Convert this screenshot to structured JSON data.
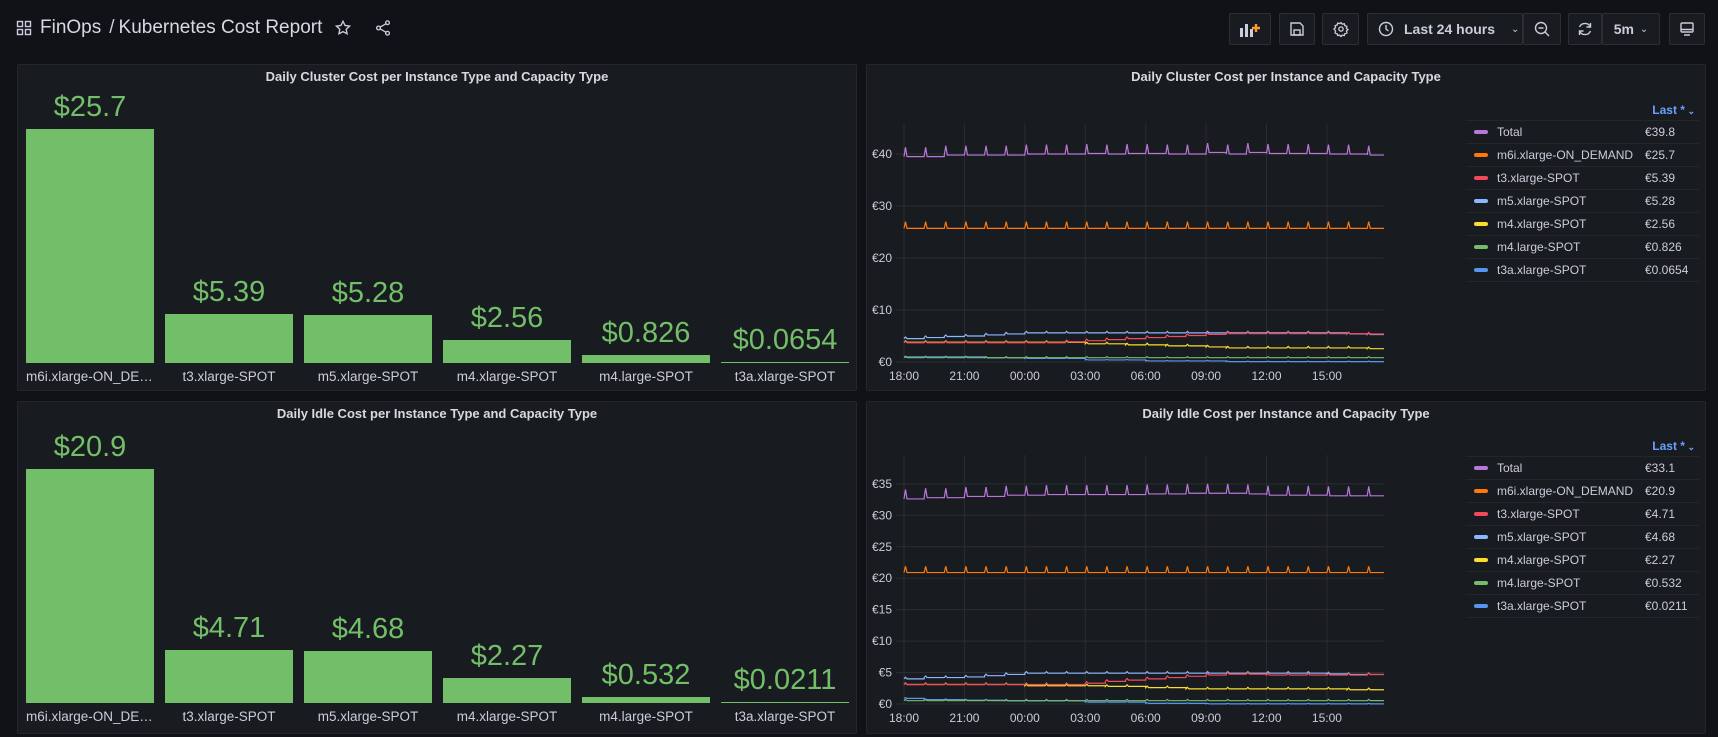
{
  "header": {
    "folder": "FinOps",
    "separator": "/",
    "title": "Kubernetes Cost Report",
    "time_range": "Last 24 hours",
    "refresh_interval": "5m"
  },
  "icons": {
    "apps": "grid-icon",
    "star": "star-icon",
    "share": "share-icon",
    "add_panel": "add-panel-icon",
    "save": "save-icon",
    "settings": "gear-icon",
    "clock": "clock-icon",
    "zoom_out": "zoom-out-icon",
    "refresh": "refresh-icon",
    "tv": "monitor-icon"
  },
  "colors": {
    "bar": "#73bf69",
    "Total": "#b877d9",
    "m6i.xlarge-ON_DEMAND": "#ff780a",
    "t3.xlarge-SPOT": "#f2495c",
    "m5.xlarge-SPOT": "#8ab8ff",
    "m4.xlarge-SPOT": "#fade2a",
    "m4.large-SPOT": "#73bf69",
    "t3a.xlarge-SPOT": "#5794f2"
  },
  "chart_data": [
    {
      "type": "bar",
      "title": "Daily Cluster Cost per Instance Type and Capacity Type",
      "categories": [
        "m6i.xlarge-ON_DEMAND",
        "t3.xlarge-SPOT",
        "m5.xlarge-SPOT",
        "m4.xlarge-SPOT",
        "m4.large-SPOT",
        "t3a.xlarge-SPOT"
      ],
      "values": [
        25.7,
        5.39,
        5.28,
        2.56,
        0.826,
        0.0654
      ],
      "labels": [
        "$25.7",
        "$5.39",
        "$5.28",
        "$2.56",
        "$0.826",
        "$0.0654"
      ]
    },
    {
      "type": "line",
      "title": "Daily Cluster Cost per Instance and Capacity Type",
      "ylim": [
        0,
        44
      ],
      "yticks": [
        0,
        10,
        20,
        30,
        40
      ],
      "ytick_labels": [
        "€0",
        "€10",
        "€20",
        "€30",
        "€40"
      ],
      "xtick_hours": [
        0,
        3,
        6,
        9,
        12,
        15,
        18,
        21
      ],
      "xtick_labels": [
        "18:00",
        "21:00",
        "00:00",
        "03:00",
        "06:00",
        "09:00",
        "12:00",
        "15:00"
      ],
      "x_start": "18:00",
      "x_end_hours": 23.83,
      "legend_header": "Last *",
      "legend_placement": "right",
      "series": [
        {
          "name": "Total",
          "last": "€39.8",
          "spike": 1.8,
          "values": [
            39.5,
            39.5,
            39.8,
            39.8,
            39.8,
            39.8,
            40,
            40,
            40,
            40.1,
            40,
            40.1,
            40.1,
            40,
            40,
            40.3,
            40,
            40.3,
            40.1,
            40.1,
            40.1,
            40,
            40,
            39.8
          ]
        },
        {
          "name": "m6i.xlarge-ON_DEMAND",
          "last": "€25.7",
          "spike": 1.3,
          "values": [
            25.7,
            25.7,
            25.7,
            25.7,
            25.7,
            25.7,
            25.7,
            25.7,
            25.7,
            25.7,
            25.7,
            25.7,
            25.7,
            25.7,
            25.7,
            25.7,
            25.7,
            25.7,
            25.7,
            25.7,
            25.7,
            25.7,
            25.7,
            25.7
          ]
        },
        {
          "name": "t3.xlarge-SPOT",
          "last": "€5.39",
          "spike": 0.3,
          "values": [
            3.7,
            3.7,
            3.7,
            3.7,
            3.7,
            3.7,
            3.7,
            3.7,
            3.9,
            4.1,
            4.3,
            4.5,
            4.7,
            4.9,
            5.1,
            5.3,
            5.45,
            5.45,
            5.45,
            5.45,
            5.45,
            5.45,
            5.45,
            5.39
          ]
        },
        {
          "name": "m5.xlarge-SPOT",
          "last": "€5.28",
          "spike": 0.3,
          "values": [
            4.5,
            4.7,
            4.9,
            5.0,
            5.2,
            5.4,
            5.6,
            5.6,
            5.6,
            5.6,
            5.6,
            5.6,
            5.6,
            5.6,
            5.6,
            5.6,
            5.6,
            5.6,
            5.6,
            5.6,
            5.6,
            5.6,
            5.4,
            5.28
          ]
        },
        {
          "name": "m4.xlarge-SPOT",
          "last": "€2.56",
          "spike": 0.3,
          "values": [
            3.8,
            3.8,
            3.8,
            3.8,
            3.8,
            3.8,
            3.8,
            3.8,
            3.8,
            3.5,
            3.5,
            3.3,
            3.3,
            3.1,
            3.1,
            2.9,
            2.7,
            2.7,
            2.7,
            2.7,
            2.7,
            2.7,
            2.7,
            2.56
          ]
        },
        {
          "name": "m4.large-SPOT",
          "last": "€0.826",
          "spike": 0.2,
          "values": [
            0.83,
            0.83,
            0.83,
            0.83,
            0.83,
            0.83,
            0.83,
            0.83,
            0.83,
            0.83,
            0.83,
            0.83,
            0.83,
            0.83,
            0.83,
            0.83,
            0.83,
            0.83,
            0.83,
            0.83,
            0.83,
            0.83,
            0.83,
            0.826
          ]
        },
        {
          "name": "t3a.xlarge-SPOT",
          "last": "€0.0654",
          "spike": 0.1,
          "values": [
            1.0,
            1.0,
            1.0,
            1.0,
            0.8,
            0.8,
            0.7,
            0.7,
            0.7,
            0.4,
            0.4,
            0.4,
            0.2,
            0.2,
            0.2,
            0.2,
            0.0654,
            0.0654,
            0.0654,
            0.0654,
            0.0654,
            0.0654,
            0.0654,
            0.0654
          ]
        }
      ]
    },
    {
      "type": "bar",
      "title": "Daily Idle Cost per Instance Type and Capacity Type",
      "categories": [
        "m6i.xlarge-ON_DEMAND",
        "t3.xlarge-SPOT",
        "m5.xlarge-SPOT",
        "m4.xlarge-SPOT",
        "m4.large-SPOT",
        "t3a.xlarge-SPOT"
      ],
      "values": [
        20.9,
        4.71,
        4.68,
        2.27,
        0.532,
        0.0211
      ],
      "labels": [
        "$20.9",
        "$4.71",
        "$4.68",
        "$2.27",
        "$0.532",
        "$0.0211"
      ]
    },
    {
      "type": "line",
      "title": "Daily Idle Cost per Instance and Capacity Type",
      "ylim": [
        0,
        38
      ],
      "yticks": [
        0,
        5,
        10,
        15,
        20,
        25,
        30,
        35
      ],
      "ytick_labels": [
        "€0",
        "€5",
        "€10",
        "€15",
        "€20",
        "€25",
        "€30",
        "€35"
      ],
      "xtick_hours": [
        0,
        3,
        6,
        9,
        12,
        15,
        18,
        21
      ],
      "xtick_labels": [
        "18:00",
        "21:00",
        "00:00",
        "03:00",
        "06:00",
        "09:00",
        "12:00",
        "15:00"
      ],
      "x_start": "18:00",
      "x_end_hours": 23.83,
      "legend_header": "Last *",
      "legend_placement": "right",
      "series": [
        {
          "name": "Total",
          "last": "€33.1",
          "spike": 1.5,
          "values": [
            32.6,
            32.8,
            32.8,
            33,
            33,
            33.2,
            33.2,
            33.3,
            33.3,
            33.3,
            33.3,
            33.3,
            33.4,
            33.4,
            33.5,
            33.5,
            33.5,
            33.4,
            33.2,
            33.2,
            33.2,
            33.1,
            33.1,
            33.1
          ]
        },
        {
          "name": "m6i.xlarge-ON_DEMAND",
          "last": "€20.9",
          "spike": 1.0,
          "values": [
            20.9,
            20.9,
            20.9,
            20.9,
            20.9,
            20.9,
            20.9,
            20.9,
            20.9,
            20.9,
            20.9,
            20.9,
            20.9,
            20.9,
            20.9,
            20.9,
            20.9,
            20.9,
            20.9,
            20.9,
            20.9,
            20.9,
            20.9,
            20.9
          ]
        },
        {
          "name": "t3.xlarge-SPOT",
          "last": "€4.71",
          "spike": 0.25,
          "values": [
            3.1,
            3.1,
            3.1,
            3.1,
            3.1,
            3.1,
            3.1,
            3.1,
            3.1,
            3.3,
            3.6,
            3.8,
            4.0,
            4.2,
            4.4,
            4.6,
            4.75,
            4.75,
            4.6,
            4.6,
            4.6,
            4.6,
            4.6,
            4.71
          ]
        },
        {
          "name": "m5.xlarge-SPOT",
          "last": "€4.68",
          "spike": 0.25,
          "values": [
            4.0,
            4.2,
            4.2,
            4.3,
            4.5,
            4.7,
            4.9,
            4.9,
            4.9,
            4.9,
            4.9,
            4.9,
            4.9,
            4.9,
            4.9,
            4.9,
            4.9,
            4.9,
            4.9,
            4.9,
            4.9,
            4.8,
            4.7,
            4.68
          ]
        },
        {
          "name": "m4.xlarge-SPOT",
          "last": "€2.27",
          "spike": 0.25,
          "values": [
            3.1,
            3.1,
            3.1,
            3.1,
            3.1,
            3.1,
            2.9,
            2.9,
            2.9,
            2.9,
            2.8,
            2.8,
            2.6,
            2.6,
            2.4,
            2.4,
            2.4,
            2.4,
            2.4,
            2.4,
            2.4,
            2.4,
            2.27,
            2.27
          ]
        },
        {
          "name": "m4.large-SPOT",
          "last": "€0.532",
          "spike": 0.2,
          "values": [
            0.53,
            0.53,
            0.53,
            0.53,
            0.53,
            0.53,
            0.53,
            0.53,
            0.53,
            0.53,
            0.53,
            0.53,
            0.53,
            0.53,
            0.53,
            0.53,
            0.53,
            0.53,
            0.53,
            0.53,
            0.53,
            0.53,
            0.53,
            0.532
          ]
        },
        {
          "name": "t3a.xlarge-SPOT",
          "last": "€0.0211",
          "spike": 0.1,
          "values": [
            0.9,
            0.7,
            0.7,
            0.6,
            0.6,
            0.5,
            0.5,
            0.5,
            0.5,
            0.3,
            0.3,
            0.3,
            0.1,
            0.1,
            0.1,
            0.0211,
            0.0211,
            0.0211,
            0.0211,
            0.0211,
            0.0211,
            0.0211,
            0.0211,
            0.0211
          ]
        }
      ]
    }
  ]
}
